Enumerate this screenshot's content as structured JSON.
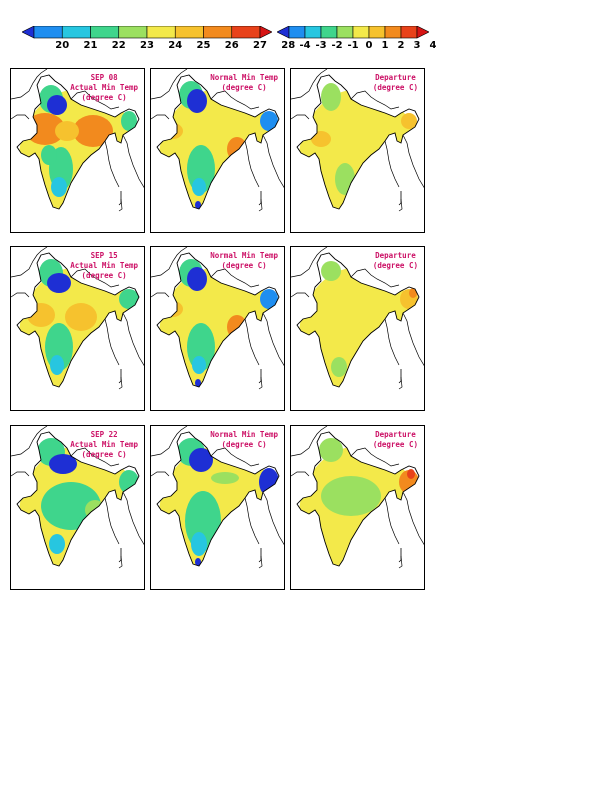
{
  "colorbars": [
    {
      "id": "absolute",
      "labels": [
        "20",
        "21",
        "22",
        "23",
        "24",
        "25",
        "26",
        "27",
        "28"
      ],
      "colors": [
        "#1e2fd4",
        "#1f8ef0",
        "#27c6e0",
        "#3fd58c",
        "#9be060",
        "#f3e94a",
        "#f6c22e",
        "#f28a1e",
        "#e8421a",
        "#d71414"
      ]
    },
    {
      "id": "departure",
      "labels": [
        "-4",
        "-3",
        "-2",
        "-1",
        "0",
        "1",
        "2",
        "3",
        "4"
      ],
      "colors": [
        "#1e2fd4",
        "#1f8ef0",
        "#27c6e0",
        "#3fd58c",
        "#9be060",
        "#f3e94a",
        "#f6c22e",
        "#f28a1e",
        "#e8421a",
        "#d71414"
      ]
    }
  ],
  "panels": [
    {
      "id": "sep08-actual",
      "title": [
        "SEP 08",
        "Actual Min Temp",
        "(degree C)"
      ],
      "style": "actual"
    },
    {
      "id": "sep08-normal",
      "title": [
        "Normal Min Temp",
        "(degree C)"
      ],
      "style": "normal"
    },
    {
      "id": "sep08-departure",
      "title": [
        "Departure",
        "(degree C)"
      ],
      "style": "depart1"
    },
    {
      "id": "sep15-actual",
      "title": [
        "SEP 15",
        "Actual Min Temp",
        "(degree C)"
      ],
      "style": "actual2"
    },
    {
      "id": "sep15-normal",
      "title": [
        "Normal Min Temp",
        "(degree C)"
      ],
      "style": "normal"
    },
    {
      "id": "sep15-departure",
      "title": [
        "Departure",
        "(degree C)"
      ],
      "style": "depart2"
    },
    {
      "id": "sep22-actual",
      "title": [
        "SEP 22",
        "Actual Min Temp",
        "(degree C)"
      ],
      "style": "actual3"
    },
    {
      "id": "sep22-normal",
      "title": [
        "Normal Min Temp",
        "(degree C)"
      ],
      "style": "normal3"
    },
    {
      "id": "sep22-departure",
      "title": [
        "Departure",
        "(degree C)"
      ],
      "style": "depart3"
    }
  ]
}
